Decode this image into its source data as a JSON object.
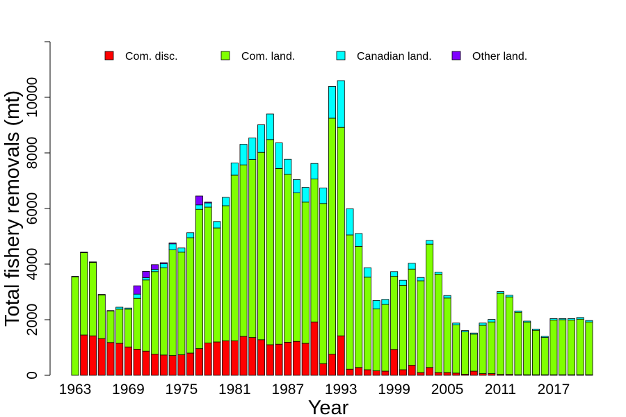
{
  "chart_data": {
    "type": "bar",
    "stacked": true,
    "title": "",
    "xlabel": "Year",
    "ylabel": "Total fishery removals (mt)",
    "ylim": [
      0,
      12000
    ],
    "yticks": [
      0,
      2000,
      4000,
      6000,
      8000,
      10000
    ],
    "xtick_labels": [
      "1963",
      "1969",
      "1975",
      "1981",
      "1987",
      "1993",
      "1999",
      "2005",
      "2011",
      "2017"
    ],
    "legend_position": "top",
    "categories": [
      1963,
      1964,
      1965,
      1966,
      1967,
      1968,
      1969,
      1970,
      1971,
      1972,
      1973,
      1974,
      1975,
      1976,
      1977,
      1978,
      1979,
      1980,
      1981,
      1982,
      1983,
      1984,
      1985,
      1986,
      1987,
      1988,
      1989,
      1990,
      1991,
      1992,
      1993,
      1994,
      1995,
      1996,
      1997,
      1998,
      1999,
      2000,
      2001,
      2002,
      2003,
      2004,
      2005,
      2006,
      2007,
      2008,
      2009,
      2010,
      2011,
      2012,
      2013,
      2014,
      2015,
      2016,
      2017,
      2018,
      2019,
      2020,
      2021
    ],
    "series": [
      {
        "name": "Com. disc.",
        "color": "#FF0000",
        "values": [
          0,
          1450,
          1420,
          1320,
          1180,
          1150,
          1020,
          940,
          870,
          760,
          730,
          710,
          740,
          800,
          960,
          1160,
          1200,
          1240,
          1240,
          1400,
          1360,
          1280,
          1100,
          1120,
          1190,
          1220,
          1150,
          1920,
          420,
          760,
          1420,
          220,
          280,
          200,
          160,
          150,
          930,
          200,
          360,
          100,
          280,
          100,
          100,
          80,
          40,
          150,
          60,
          60,
          30,
          30,
          20,
          20,
          20,
          20,
          20,
          20,
          20,
          20,
          20
        ]
      },
      {
        "name": "Com. land.",
        "color": "#80FF00",
        "values": [
          3540,
          2960,
          2640,
          1570,
          1130,
          1230,
          1360,
          1830,
          2560,
          2970,
          3140,
          3800,
          3690,
          4150,
          5010,
          4890,
          4100,
          4860,
          5960,
          6170,
          6400,
          6740,
          7380,
          6320,
          6040,
          5340,
          5080,
          5140,
          5760,
          8490,
          7500,
          4830,
          4360,
          3330,
          2230,
          2400,
          2630,
          3040,
          3460,
          3300,
          4440,
          3540,
          2680,
          1730,
          1520,
          1330,
          1740,
          1860,
          2920,
          2790,
          2250,
          1890,
          1600,
          1340,
          1970,
          1980,
          1970,
          2000,
          1900
        ]
      },
      {
        "name": "Canadian land.",
        "color": "#00FFFF",
        "values": [
          20,
          20,
          20,
          20,
          20,
          70,
          40,
          150,
          80,
          80,
          140,
          220,
          150,
          180,
          160,
          150,
          230,
          300,
          440,
          740,
          780,
          990,
          920,
          920,
          540,
          480,
          530,
          560,
          560,
          1140,
          1680,
          940,
          460,
          340,
          300,
          180,
          170,
          180,
          210,
          120,
          130,
          70,
          90,
          70,
          50,
          40,
          80,
          90,
          60,
          60,
          40,
          40,
          40,
          40,
          50,
          40,
          50,
          60,
          50
        ]
      },
      {
        "name": "Other land.",
        "color": "#7F00FF",
        "values": [
          0,
          0,
          0,
          0,
          0,
          0,
          0,
          300,
          230,
          170,
          40,
          30,
          0,
          0,
          320,
          30,
          0,
          0,
          0,
          0,
          0,
          0,
          0,
          0,
          0,
          0,
          0,
          0,
          0,
          0,
          0,
          0,
          0,
          0,
          0,
          0,
          0,
          0,
          0,
          0,
          0,
          0,
          0,
          0,
          0,
          0,
          0,
          0,
          0,
          0,
          0,
          0,
          0,
          0,
          0,
          0,
          0,
          0,
          0
        ]
      }
    ]
  }
}
